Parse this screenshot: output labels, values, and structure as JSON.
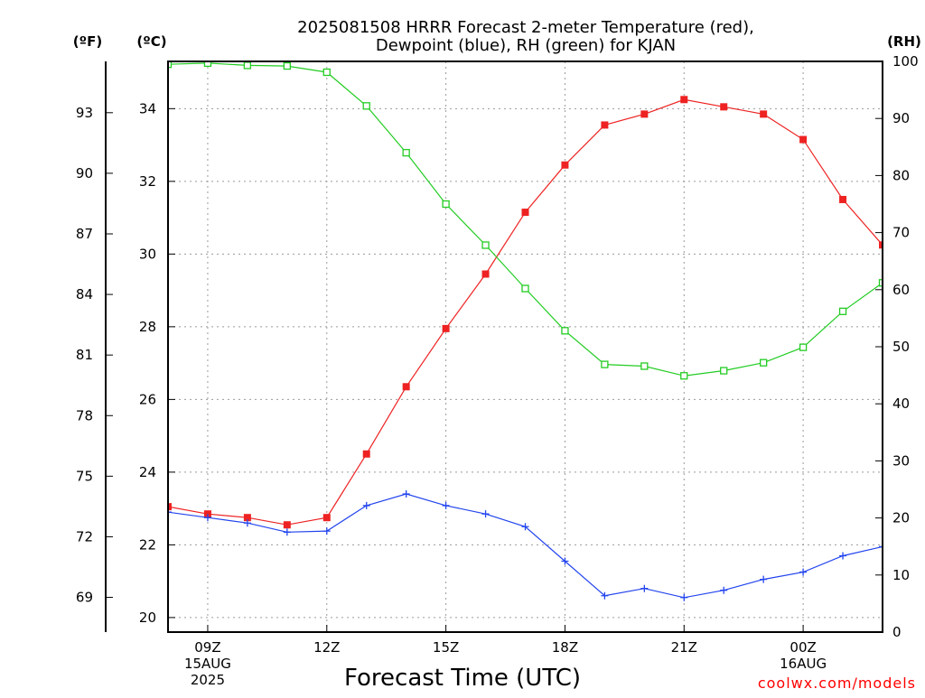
{
  "chart_data": {
    "type": "line",
    "title_line1": "2025081508 HRRR Forecast 2-meter Temperature (red),",
    "title_line2": "Dewpoint (blue), RH (green) for KJAN",
    "xlabel": "Forecast Time (UTC)",
    "credit": "coolwx.com/models",
    "unit_f": "(ºF)",
    "unit_c": "(ºC)",
    "unit_rh": "(RH)",
    "x_hours": [
      8,
      9,
      10,
      11,
      12,
      13,
      14,
      15,
      16,
      17,
      18,
      19,
      20,
      21,
      22,
      23,
      24,
      25,
      26
    ],
    "x_ticks": [
      {
        "hour": 9,
        "lines": [
          "09Z",
          "15AUG",
          "2025"
        ]
      },
      {
        "hour": 12,
        "lines": [
          "12Z"
        ]
      },
      {
        "hour": 15,
        "lines": [
          "15Z"
        ]
      },
      {
        "hour": 18,
        "lines": [
          "18Z"
        ]
      },
      {
        "hour": 21,
        "lines": [
          "21Z"
        ]
      },
      {
        "hour": 24,
        "lines": [
          "00Z",
          "16AUG"
        ]
      }
    ],
    "xlim": [
      8,
      26
    ],
    "y_celsius": {
      "ticks": [
        20,
        22,
        24,
        26,
        28,
        30,
        32,
        34
      ],
      "lim": [
        19.6,
        35.3
      ]
    },
    "y_fahrenheit": {
      "ticks": [
        69,
        72,
        75,
        78,
        81,
        84,
        87,
        90,
        93
      ]
    },
    "y_rh": {
      "ticks": [
        0,
        10,
        20,
        30,
        40,
        50,
        60,
        70,
        80,
        90,
        100
      ],
      "lim": [
        0,
        100
      ]
    },
    "series": [
      {
        "name": "Temperature",
        "axis": "celsius",
        "color": "#ee2222",
        "marker": "filled-square",
        "values": [
          23.05,
          22.85,
          22.75,
          22.55,
          22.75,
          24.5,
          26.35,
          27.95,
          29.45,
          31.15,
          32.45,
          33.55,
          33.85,
          34.25,
          34.05,
          33.85,
          33.15,
          31.5,
          30.25
        ]
      },
      {
        "name": "Dewpoint",
        "axis": "celsius",
        "color": "#2244ee",
        "marker": "plus",
        "values": [
          22.9,
          22.75,
          22.6,
          22.35,
          22.38,
          23.08,
          23.4,
          23.08,
          22.85,
          22.5,
          21.55,
          20.6,
          20.8,
          20.55,
          20.75,
          21.05,
          21.25,
          21.7,
          21.95
        ]
      },
      {
        "name": "RH",
        "axis": "rh",
        "color": "#22cc22",
        "marker": "open-square",
        "values": [
          99.5,
          99.7,
          99.3,
          99.2,
          98.1,
          92.2,
          84.0,
          75.0,
          67.8,
          60.2,
          52.8,
          46.9,
          46.6,
          44.9,
          45.8,
          47.2,
          49.9,
          56.2,
          61.2
        ]
      }
    ]
  }
}
